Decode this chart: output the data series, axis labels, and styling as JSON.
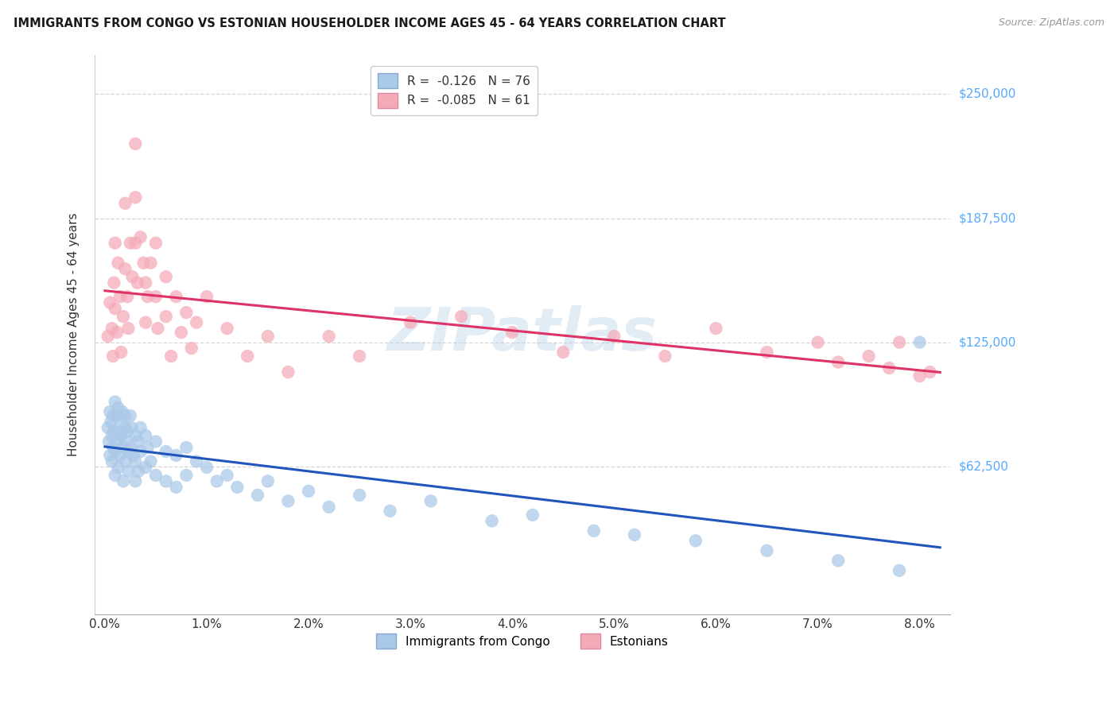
{
  "title": "IMMIGRANTS FROM CONGO VS ESTONIAN HOUSEHOLDER INCOME AGES 45 - 64 YEARS CORRELATION CHART",
  "source": "Source: ZipAtlas.com",
  "ylabel": "Householder Income Ages 45 - 64 years",
  "xlabel_ticks": [
    "0.0%",
    "1.0%",
    "2.0%",
    "3.0%",
    "4.0%",
    "5.0%",
    "6.0%",
    "7.0%",
    "8.0%"
  ],
  "xlabel_vals": [
    0.0,
    0.01,
    0.02,
    0.03,
    0.04,
    0.05,
    0.06,
    0.07,
    0.08
  ],
  "ytick_labels": [
    "$62,500",
    "$125,000",
    "$187,500",
    "$250,000"
  ],
  "ytick_vals": [
    62500,
    125000,
    187500,
    250000
  ],
  "xlim": [
    -0.001,
    0.083
  ],
  "ylim": [
    -12000,
    270000
  ],
  "watermark": "ZIPatlas",
  "congo_color": "#aac8e8",
  "estonian_color": "#f5aab8",
  "congo_line_color": "#2255bb",
  "estonian_line_color": "#dd3366",
  "right_label_color": "#55aaff",
  "legend_label1": "Immigrants from Congo",
  "legend_label2": "Estonians",
  "congo_R": -0.126,
  "estonian_R": -0.085,
  "congo_N": 76,
  "estonian_N": 61,
  "congo_x": [
    0.0003,
    0.0004,
    0.0005,
    0.0005,
    0.0006,
    0.0007,
    0.0007,
    0.0008,
    0.0008,
    0.0009,
    0.001,
    0.001,
    0.001,
    0.0012,
    0.0012,
    0.0013,
    0.0013,
    0.0014,
    0.0015,
    0.0015,
    0.0016,
    0.0017,
    0.0018,
    0.0018,
    0.002,
    0.002,
    0.002,
    0.002,
    0.0022,
    0.0023,
    0.0023,
    0.0025,
    0.0025,
    0.0026,
    0.0028,
    0.003,
    0.003,
    0.003,
    0.0032,
    0.0033,
    0.0035,
    0.0035,
    0.004,
    0.004,
    0.0042,
    0.0045,
    0.005,
    0.005,
    0.006,
    0.006,
    0.007,
    0.007,
    0.008,
    0.008,
    0.009,
    0.01,
    0.011,
    0.012,
    0.013,
    0.015,
    0.016,
    0.018,
    0.02,
    0.022,
    0.025,
    0.028,
    0.032,
    0.038,
    0.042,
    0.048,
    0.052,
    0.058,
    0.065,
    0.072,
    0.078,
    0.08
  ],
  "congo_y": [
    82000,
    75000,
    90000,
    68000,
    85000,
    78000,
    65000,
    88000,
    72000,
    80000,
    95000,
    70000,
    58000,
    88000,
    75000,
    92000,
    62000,
    80000,
    85000,
    68000,
    78000,
    90000,
    72000,
    55000,
    88000,
    82000,
    75000,
    65000,
    80000,
    70000,
    60000,
    88000,
    72000,
    82000,
    68000,
    78000,
    65000,
    55000,
    75000,
    60000,
    82000,
    70000,
    78000,
    62000,
    72000,
    65000,
    75000,
    58000,
    70000,
    55000,
    68000,
    52000,
    72000,
    58000,
    65000,
    62000,
    55000,
    58000,
    52000,
    48000,
    55000,
    45000,
    50000,
    42000,
    48000,
    40000,
    45000,
    35000,
    38000,
    30000,
    28000,
    25000,
    20000,
    15000,
    10000,
    125000
  ],
  "estonian_x": [
    0.0003,
    0.0005,
    0.0007,
    0.0008,
    0.0009,
    0.001,
    0.001,
    0.0012,
    0.0013,
    0.0015,
    0.0016,
    0.0018,
    0.002,
    0.002,
    0.0022,
    0.0023,
    0.0025,
    0.0027,
    0.003,
    0.003,
    0.003,
    0.0032,
    0.0035,
    0.0038,
    0.004,
    0.004,
    0.0042,
    0.0045,
    0.005,
    0.005,
    0.0052,
    0.006,
    0.006,
    0.0065,
    0.007,
    0.0075,
    0.008,
    0.0085,
    0.009,
    0.01,
    0.012,
    0.014,
    0.016,
    0.018,
    0.022,
    0.025,
    0.03,
    0.035,
    0.04,
    0.045,
    0.05,
    0.055,
    0.06,
    0.065,
    0.07,
    0.072,
    0.075,
    0.077,
    0.078,
    0.08,
    0.081
  ],
  "estonian_y": [
    128000,
    145000,
    132000,
    118000,
    155000,
    175000,
    142000,
    130000,
    165000,
    148000,
    120000,
    138000,
    195000,
    162000,
    148000,
    132000,
    175000,
    158000,
    225000,
    198000,
    175000,
    155000,
    178000,
    165000,
    155000,
    135000,
    148000,
    165000,
    175000,
    148000,
    132000,
    158000,
    138000,
    118000,
    148000,
    130000,
    140000,
    122000,
    135000,
    148000,
    132000,
    118000,
    128000,
    110000,
    128000,
    118000,
    135000,
    138000,
    130000,
    120000,
    128000,
    118000,
    132000,
    120000,
    125000,
    115000,
    118000,
    112000,
    125000,
    108000,
    110000
  ]
}
